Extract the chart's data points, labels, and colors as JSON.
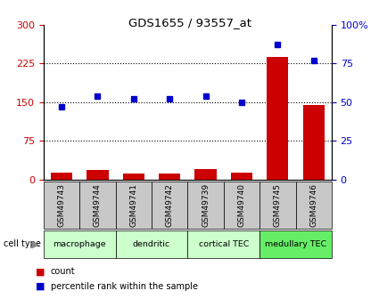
{
  "title": "GDS1655 / 93557_at",
  "samples": [
    "GSM49743",
    "GSM49744",
    "GSM49741",
    "GSM49742",
    "GSM49739",
    "GSM49740",
    "GSM49745",
    "GSM49746"
  ],
  "counts": [
    13,
    18,
    11,
    12,
    20,
    13,
    238,
    145
  ],
  "percentiles": [
    47,
    54,
    52,
    52,
    54,
    50,
    87,
    77
  ],
  "left_ylim": [
    0,
    300
  ],
  "right_ylim": [
    0,
    100
  ],
  "left_yticks": [
    0,
    75,
    150,
    225,
    300
  ],
  "right_yticks": [
    0,
    25,
    50,
    75,
    100
  ],
  "right_yticklabels": [
    "0",
    "25",
    "50",
    "75",
    "100%"
  ],
  "hlines": [
    75,
    150,
    225
  ],
  "groups": [
    {
      "label": "macrophage",
      "indices": [
        0,
        1
      ],
      "color": "#ccffcc"
    },
    {
      "label": "dendritic",
      "indices": [
        2,
        3
      ],
      "color": "#ccffcc"
    },
    {
      "label": "cortical TEC",
      "indices": [
        4,
        5
      ],
      "color": "#ccffcc"
    },
    {
      "label": "medullary TEC",
      "indices": [
        6,
        7
      ],
      "color": "#66ee66"
    }
  ],
  "bar_color": "#cc0000",
  "point_color": "#0000cc",
  "sample_box_color": "#c8c8c8",
  "left_tick_color": "#cc0000",
  "right_tick_color": "#0000cc"
}
